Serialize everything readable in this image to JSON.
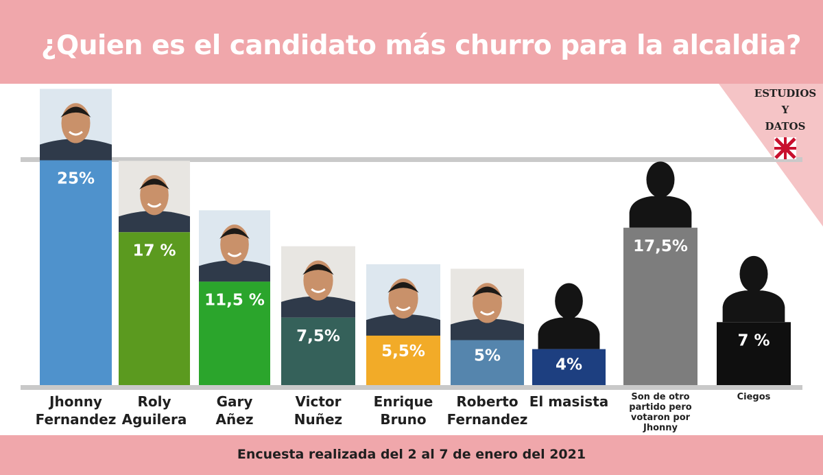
{
  "header": {
    "title": "¿Quien es el candidato más churro para la alcaldia?"
  },
  "brand": {
    "line1": "ESTUDIOS",
    "line2": "Y",
    "line3": "DATOS"
  },
  "footer": {
    "note": "Encuesta realizada del 2 al 7 de enero del 2021"
  },
  "colors": {
    "header_bg": "#f0a7ab",
    "blue": "#4f92cc",
    "olive_green": "#5b9a1f",
    "green": "#2ba52c",
    "teal": "#35615a",
    "orange": "#f2ab28",
    "steel_blue": "#5585ad",
    "navy": "#1d3f80",
    "gray": "#7d7d7d",
    "black": "#0f0f0f"
  },
  "chart_data": {
    "type": "bar",
    "title": "¿Quien es el candidato más churro para la alcaldia?",
    "ylim": [
      0,
      25
    ],
    "grid": false,
    "series": [
      {
        "values": [
          25,
          17,
          11.5,
          7.5,
          5.5,
          5,
          4,
          17.5,
          7
        ]
      }
    ],
    "bars": [
      {
        "label_lines": [
          "Jhonny",
          "Fernandez"
        ],
        "value": 25,
        "value_label": "25%",
        "color": "#4f92cc",
        "image": "photo"
      },
      {
        "label_lines": [
          "Roly",
          "Aguilera"
        ],
        "value": 17,
        "value_label": "17 %",
        "color": "#5b9a1f",
        "image": "photo"
      },
      {
        "label_lines": [
          "Gary",
          "Añez"
        ],
        "value": 11.5,
        "value_label": "11,5 %",
        "color": "#2ba52c",
        "image": "photo"
      },
      {
        "label_lines": [
          "Victor",
          "Nuñez"
        ],
        "value": 7.5,
        "value_label": "7,5%",
        "color": "#35615a",
        "image": "photo"
      },
      {
        "label_lines": [
          "Enrique",
          "Bruno"
        ],
        "value": 5.5,
        "value_label": "5,5%",
        "color": "#f2ab28",
        "image": "photo"
      },
      {
        "label_lines": [
          "Roberto",
          "Fernandez"
        ],
        "value": 5,
        "value_label": "5%",
        "color": "#5585ad",
        "image": "photo"
      },
      {
        "label_lines": [
          "El masista"
        ],
        "value": 4,
        "value_label": "4%",
        "color": "#1d3f80",
        "image": "silhouette"
      },
      {
        "label_lines": [
          "Son de otro",
          "partido pero",
          "votaron por",
          "Jhonny"
        ],
        "value": 17.5,
        "value_label": "17,5%",
        "color": "#7d7d7d",
        "image": "silhouette"
      },
      {
        "label_lines": [
          "Ciegos"
        ],
        "value": 7,
        "value_label": "7 %",
        "color": "#0f0f0f",
        "image": "silhouette"
      }
    ]
  }
}
